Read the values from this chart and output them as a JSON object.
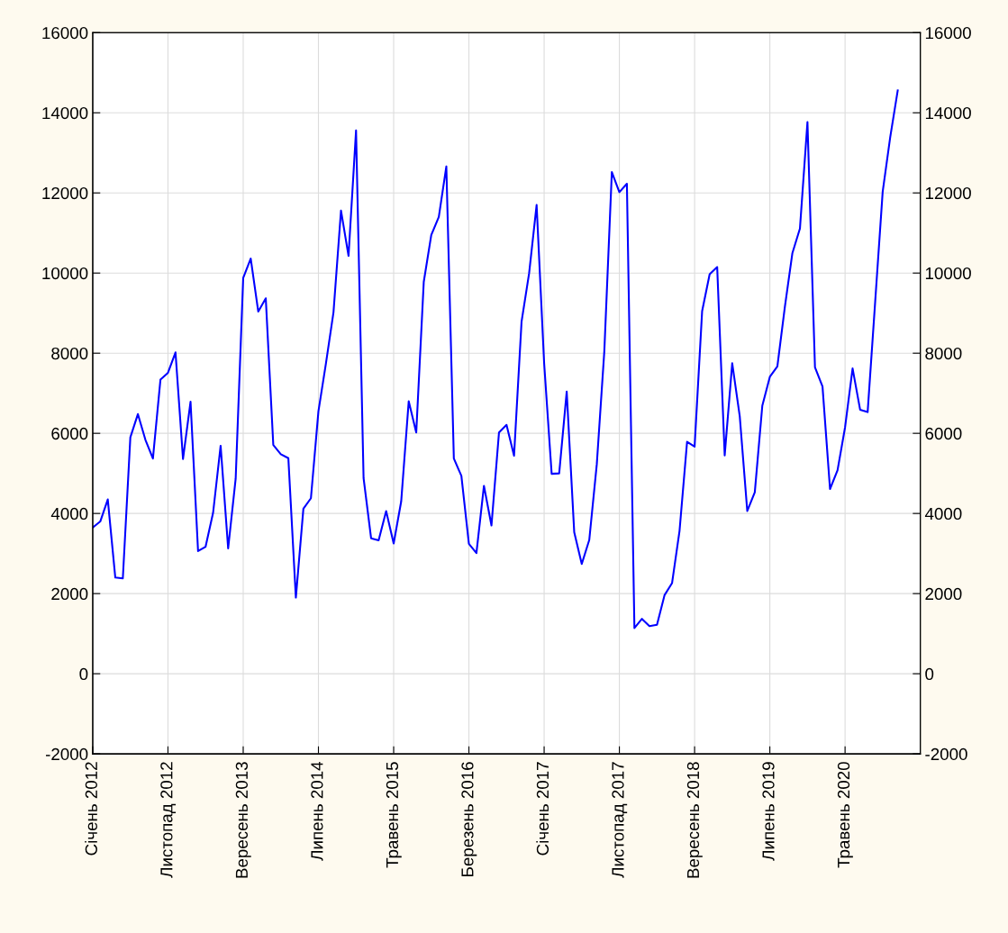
{
  "chart_data": {
    "type": "line",
    "categories": [
      "Січень 2012",
      null,
      null,
      null,
      null,
      null,
      null,
      null,
      null,
      null,
      "Листопад 2012",
      null,
      null,
      null,
      null,
      null,
      null,
      null,
      null,
      null,
      "Вересень 2013",
      null,
      null,
      null,
      null,
      null,
      null,
      null,
      null,
      null,
      "Липень 2014",
      null,
      null,
      null,
      null,
      null,
      null,
      null,
      null,
      null,
      "Травень 2015",
      null,
      null,
      null,
      null,
      null,
      null,
      null,
      null,
      null,
      "Березень 2016",
      null,
      null,
      null,
      null,
      null,
      null,
      null,
      null,
      null,
      "Січень 2017",
      null,
      null,
      null,
      null,
      null,
      null,
      null,
      null,
      null,
      "Листопад 2017",
      null,
      null,
      null,
      null,
      null,
      null,
      null,
      null,
      null,
      "Вересень 2018",
      null,
      null,
      null,
      null,
      null,
      null,
      null,
      null,
      null,
      "Липень 2019",
      null,
      null,
      null,
      null,
      null,
      null,
      null,
      null,
      null,
      "Травень 2020",
      null,
      null,
      null,
      null,
      null,
      null,
      null
    ],
    "series": [
      {
        "color": "#0000ff",
        "values": [
          3650,
          3800,
          4350,
          2400,
          2380,
          5900,
          6480,
          5840,
          5370,
          7340,
          7510,
          8020,
          5360,
          6790,
          3060,
          3170,
          4020,
          5690,
          3130,
          4870,
          9880,
          10360,
          9040,
          9370,
          5710,
          5480,
          5380,
          1900,
          4120,
          4380,
          6550,
          7750,
          9020,
          11560,
          10430,
          13560,
          4880,
          3380,
          3330,
          4060,
          3250,
          4300,
          6800,
          6020,
          9780,
          10950,
          11400,
          12660,
          5370,
          4940,
          3240,
          3010,
          4690,
          3700,
          6020,
          6210,
          5440,
          8790,
          9990,
          11700,
          7750,
          4990,
          5000,
          7040,
          3530,
          2740,
          3340,
          5230,
          8050,
          12520,
          12020,
          12230,
          1140,
          1370,
          1190,
          1220,
          1960,
          2260,
          3570,
          5790,
          5670,
          9050,
          9970,
          10150,
          5450,
          7750,
          6430,
          4060,
          4530,
          6690,
          7410,
          7670,
          9160,
          10500,
          11110,
          13770,
          7650,
          7170,
          4610,
          5080,
          6150,
          7620,
          6590,
          6530,
          9280,
          12030,
          13390,
          14560
        ]
      }
    ],
    "ylim": [
      -2000,
      16000
    ],
    "yticks": [
      -2000,
      0,
      2000,
      4000,
      6000,
      8000,
      10000,
      12000,
      14000,
      16000
    ],
    "y2lim": [
      -2000,
      16000
    ],
    "y2ticks": [
      -2000,
      0,
      2000,
      4000,
      6000,
      8000,
      10000,
      12000,
      14000,
      16000
    ],
    "grid": true,
    "line_style": "solid",
    "marker": "none"
  }
}
